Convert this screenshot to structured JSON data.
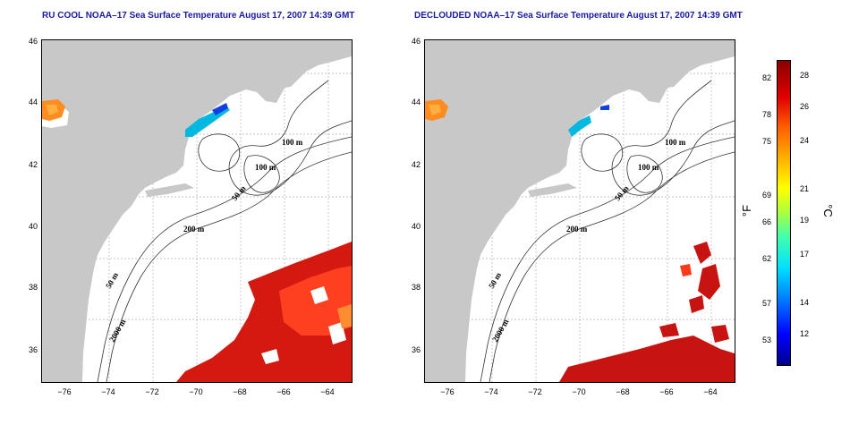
{
  "titles": {
    "left": "RU COOL NOAA–17 Sea Surface Temperature August 17, 2007 14:39 GMT",
    "right": "DECLOUDED NOAA–17 Sea Surface Temperature August 17, 2007 14:39 GMT"
  },
  "axes": {
    "latitude_ticks": [
      "46",
      "44",
      "42",
      "40",
      "38",
      "36"
    ],
    "longitude_ticks": [
      "−76",
      "−74",
      "−72",
      "−70",
      "−68",
      "−66",
      "−64"
    ],
    "lat_range": [
      35,
      46
    ],
    "lon_range": [
      -77,
      -63
    ]
  },
  "contour_labels": [
    "100 m",
    "100 m",
    "50 m",
    "200 m",
    "50 m",
    "2000 m"
  ],
  "colorbar": {
    "fahrenheit_label": "°F",
    "celsius_label": "°C",
    "fahrenheit_ticks": [
      "82",
      "78",
      "75",
      "69",
      "66",
      "62",
      "57",
      "53"
    ],
    "celsius_ticks": [
      "28",
      "26",
      "24",
      "21",
      "19",
      "17",
      "14",
      "12"
    ],
    "celsius_range": [
      10,
      29.5
    ]
  },
  "colors": {
    "land": "#c8c8c8",
    "title": "#1a1aa0",
    "warm": "#d41a10",
    "cool": "#00b8e0"
  }
}
